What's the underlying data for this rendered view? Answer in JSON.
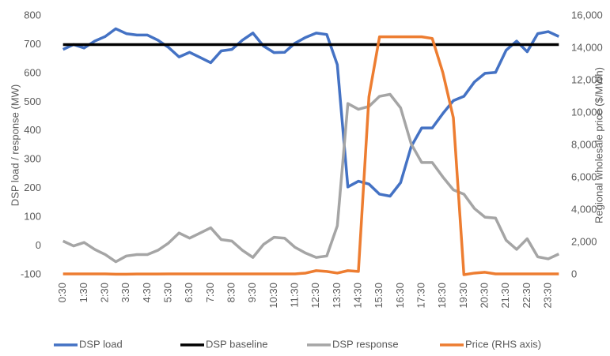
{
  "chart_data": {
    "type": "line",
    "y_label": "DSP load / response (MW)",
    "y2_label": "Regional wholesale price ($/MWh)",
    "categories": [
      "0:30",
      null,
      "1:30",
      null,
      "2:30",
      null,
      "3:30",
      null,
      "4:30",
      null,
      "5:30",
      null,
      "6:30",
      null,
      "7:30",
      null,
      "8:30",
      null,
      "9:30",
      null,
      "10:30",
      null,
      "11:30",
      null,
      "12:30",
      null,
      "13:30",
      null,
      "14:30",
      null,
      "15:30",
      null,
      "16:30",
      null,
      "17:30",
      null,
      "18:30",
      null,
      "19:30",
      null,
      "20:30",
      null,
      "21:30",
      null,
      "22:30",
      null,
      "23:30",
      null
    ],
    "ylim": [
      -100,
      800
    ],
    "yticks": [
      -100,
      0,
      100,
      200,
      300,
      400,
      500,
      600,
      700,
      800
    ],
    "y2lim": [
      0,
      16000
    ],
    "y2ticks": [
      0,
      {
        "value": 2000,
        "label": "2,000"
      },
      {
        "value": 4000,
        "label": "4,000"
      },
      {
        "value": 6000,
        "label": "6,000"
      },
      {
        "value": 8000,
        "label": "8,000"
      },
      {
        "value": 10000,
        "label": "10,000"
      },
      {
        "value": 12000,
        "label": "12,000"
      },
      {
        "value": 14000,
        "label": "14,000"
      },
      {
        "value": 16000,
        "label": "16,000"
      }
    ],
    "legend": "bottom",
    "series": [
      {
        "name": "DSP load",
        "color": "#4472c4",
        "values": [
          683,
          700,
          688,
          712,
          728,
          755,
          738,
          733,
          733,
          715,
          690,
          657,
          673,
          655,
          637,
          678,
          683,
          715,
          740,
          695,
          672,
          673,
          705,
          725,
          740,
          735,
          630,
          205,
          225,
          215,
          180,
          173,
          220,
          345,
          410,
          410,
          460,
          505,
          520,
          570,
          600,
          603,
          680,
          712,
          675,
          738,
          745,
          728
        ]
      },
      {
        "name": "DSP baseline",
        "color": "#000000",
        "values": [
          700,
          700,
          700,
          700,
          700,
          700,
          700,
          700,
          700,
          700,
          700,
          700,
          700,
          700,
          700,
          700,
          700,
          700,
          700,
          700,
          700,
          700,
          700,
          700,
          700,
          700,
          700,
          700,
          700,
          700,
          700,
          700,
          700,
          700,
          700,
          700,
          700,
          700,
          700,
          700,
          700,
          700,
          700,
          700,
          700,
          700,
          700,
          700
        ]
      },
      {
        "name": "DSP response",
        "color": "#a5a5a5",
        "values": [
          17,
          0,
          12,
          -12,
          -30,
          -55,
          -35,
          -30,
          -30,
          -15,
          10,
          45,
          27,
          45,
          63,
          22,
          17,
          -15,
          -40,
          5,
          30,
          27,
          -5,
          -25,
          -40,
          -35,
          70,
          495,
          475,
          485,
          520,
          527,
          480,
          355,
          290,
          290,
          240,
          195,
          180,
          130,
          100,
          97,
          20,
          -12,
          25,
          -38,
          -45,
          -28
        ]
      },
      {
        "name": "Price (RHS axis)",
        "color": "#ed7d31",
        "axis": "y2",
        "values": [
          50,
          50,
          50,
          50,
          50,
          30,
          30,
          40,
          40,
          40,
          50,
          50,
          50,
          50,
          50,
          50,
          50,
          50,
          50,
          50,
          50,
          50,
          50,
          100,
          250,
          200,
          100,
          250,
          200,
          11000,
          14700,
          14700,
          14700,
          14700,
          14700,
          14600,
          12500,
          9700,
          0,
          100,
          150,
          50,
          50,
          50,
          50,
          50,
          50,
          50
        ]
      }
    ]
  }
}
